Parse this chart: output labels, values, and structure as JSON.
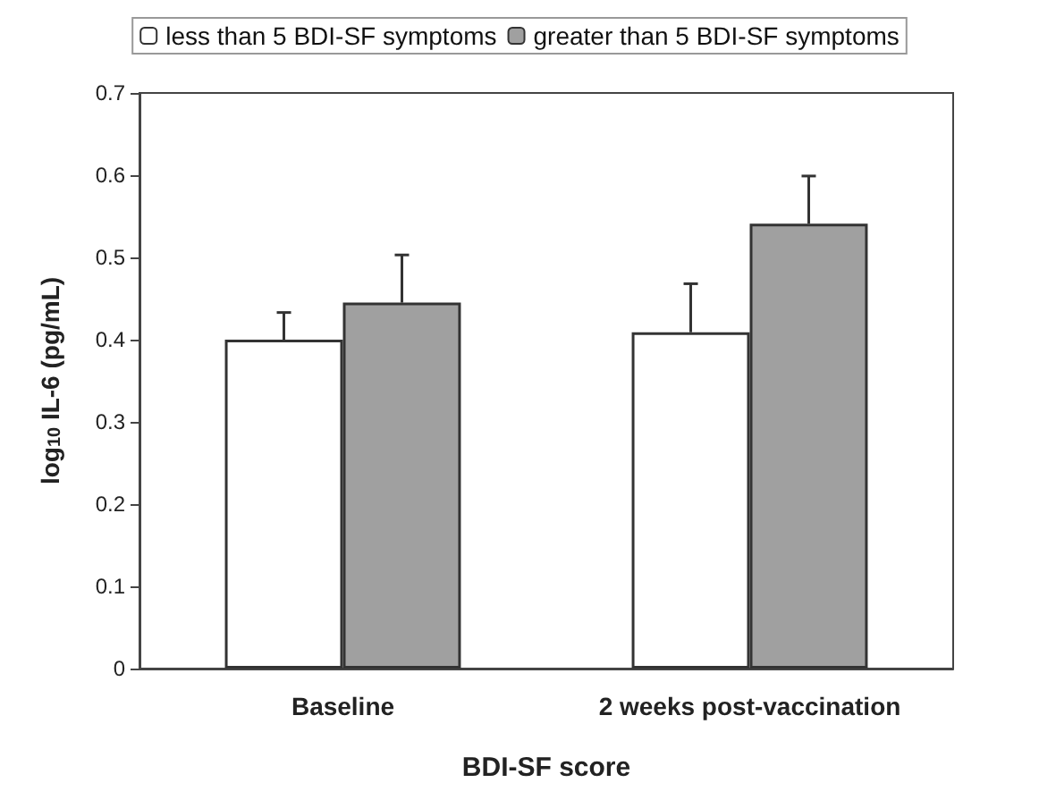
{
  "chart_data": {
    "type": "bar",
    "xlabel": "BDI-SF score",
    "ylabel": "log$_{10}$ IL-6 (pg/mL)",
    "categories": [
      "Baseline",
      "2 weeks post-vaccination"
    ],
    "series": [
      {
        "name": "less than 5 BDI-SF symptoms",
        "color": "#ffffff",
        "values": [
          0.4,
          0.409
        ],
        "errors": [
          [
            0.4,
            0.433
          ],
          [
            0.409,
            0.468
          ]
        ]
      },
      {
        "name": "greater than 5 BDI-SF symptoms",
        "color": "#a0a0a0",
        "values": [
          0.445,
          0.541
        ],
        "errors": [
          [
            0.445,
            0.503
          ],
          [
            0.541,
            0.599
          ]
        ]
      }
    ],
    "ylim": [
      0,
      0.7
    ],
    "yticks": [
      0,
      0.1,
      0.2,
      0.3,
      0.4,
      0.5,
      0.6,
      0.7
    ],
    "grid": false,
    "legend": "top"
  }
}
